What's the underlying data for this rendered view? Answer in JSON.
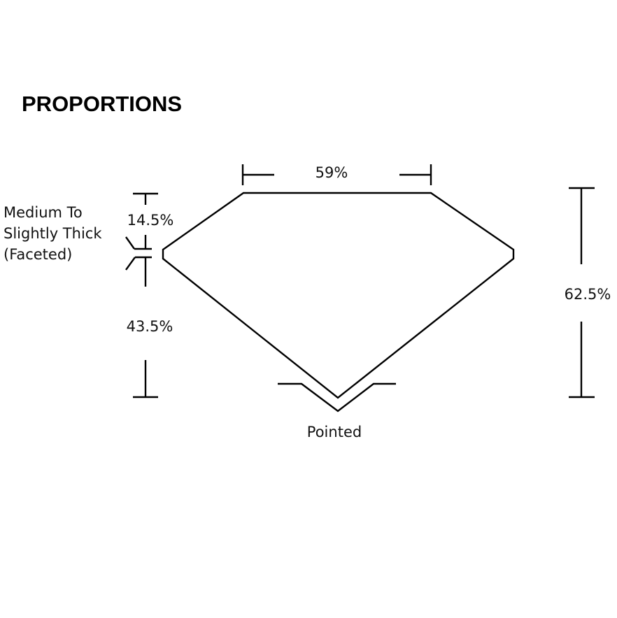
{
  "title": "PROPORTIONS",
  "labels": {
    "table": "59%",
    "crown": "14.5%",
    "girdle_line1": "Medium To",
    "girdle_line2": "Slightly Thick",
    "girdle_line3": "(Faceted)",
    "pavilion": "43.5%",
    "total_depth": "62.5%",
    "culet": "Pointed"
  }
}
